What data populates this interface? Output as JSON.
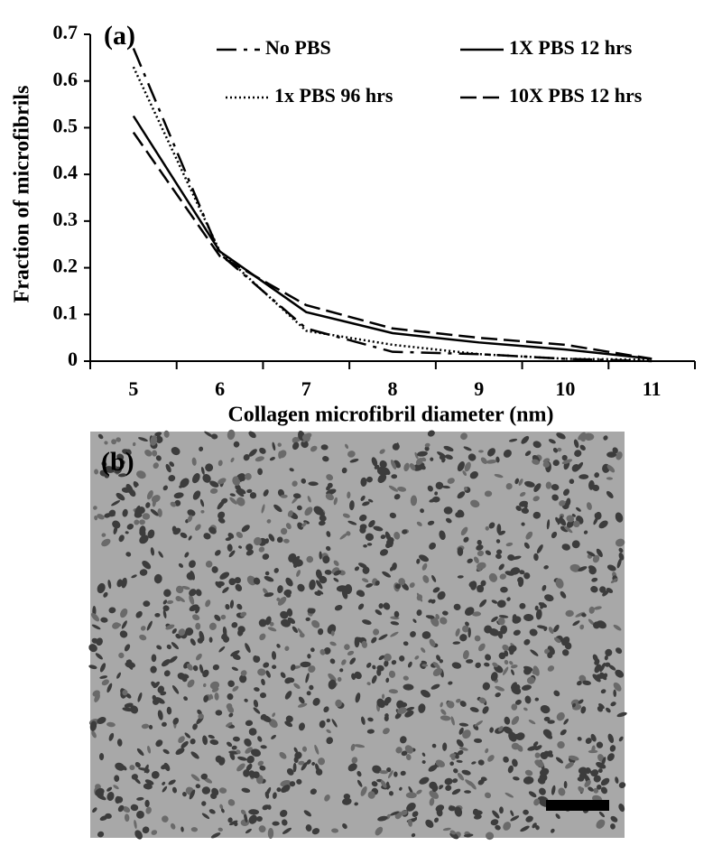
{
  "chart_data": {
    "type": "line",
    "panel_a_label": "(a)",
    "panel_b_label": "(b)",
    "x_label": "Collagen microfibril diameter (nm)",
    "y_label": "Fraction of microfibrils",
    "categories": [
      "5",
      "6",
      "7",
      "8",
      "9",
      "10",
      "11"
    ],
    "ylim": [
      0,
      0.7
    ],
    "yticks": [
      0,
      0.1,
      0.2,
      0.3,
      0.4,
      0.5,
      0.6,
      0.7
    ],
    "series": [
      {
        "name": "No PBS",
        "color": "#000000",
        "style": "dash-dot",
        "values": [
          0.67,
          0.23,
          0.07,
          0.02,
          0.015,
          0.005,
          0
        ]
      },
      {
        "name": "1X PBS 12 hrs",
        "color": "#000000",
        "style": "solid",
        "values": [
          0.525,
          0.235,
          0.105,
          0.06,
          0.04,
          0.025,
          0.005
        ]
      },
      {
        "name": "1x PBS 96 hrs",
        "color": "#000000",
        "style": "dotted",
        "values": [
          0.63,
          0.235,
          0.065,
          0.035,
          0.015,
          0.005,
          0.003
        ]
      },
      {
        "name": "10X PBS 12 hrs",
        "color": "#000000",
        "style": "dashed",
        "values": [
          0.49,
          0.225,
          0.12,
          0.07,
          0.05,
          0.035,
          0.005
        ]
      }
    ]
  }
}
